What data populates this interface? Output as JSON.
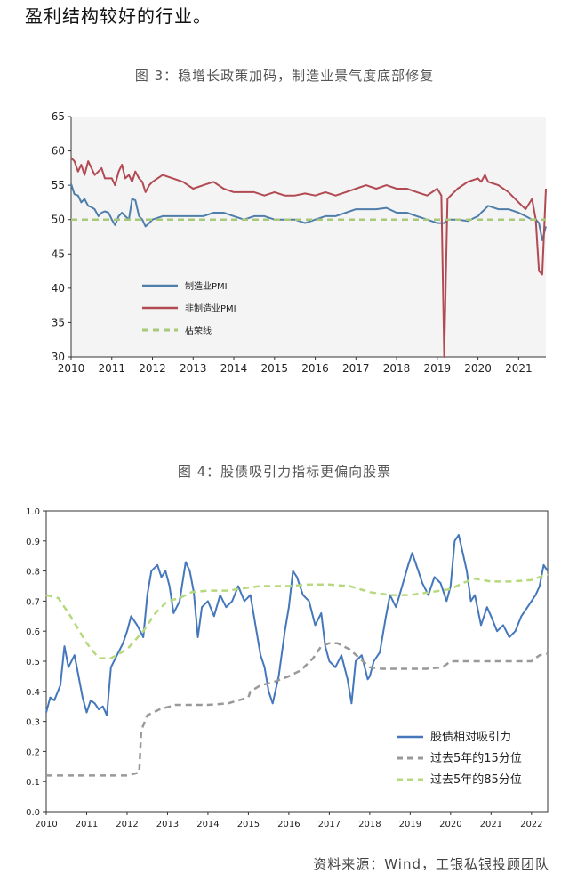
{
  "intro_text": "盈利结构较好的行业。",
  "source_text": "资料来源：Wind，工银私银投顾团队",
  "chart_data": [
    {
      "type": "line",
      "title": "图 3：稳增长政策加码，制造业景气度底部修复",
      "x_ticks": [
        "2010",
        "2011",
        "2012",
        "2013",
        "2014",
        "2015",
        "2016",
        "2017",
        "2018",
        "2019",
        "2020",
        "2021"
      ],
      "xlim": [
        2010,
        2021.67
      ],
      "ylim": [
        30,
        65
      ],
      "y_ticks": [
        30,
        35,
        40,
        45,
        50,
        55,
        60,
        65
      ],
      "grid": false,
      "legend_position": "lower-left",
      "series": [
        {
          "name": "制造业PMI",
          "color": "#4f7eab",
          "x": [
            2010.0,
            2010.08,
            2010.17,
            2010.25,
            2010.33,
            2010.42,
            2010.5,
            2010.58,
            2010.67,
            2010.75,
            2010.83,
            2010.92,
            2011.0,
            2011.08,
            2011.17,
            2011.25,
            2011.33,
            2011.42,
            2011.5,
            2011.58,
            2011.67,
            2011.75,
            2011.83,
            2011.92,
            2012.0,
            2012.25,
            2012.5,
            2012.75,
            2013.0,
            2013.25,
            2013.5,
            2013.75,
            2014.0,
            2014.25,
            2014.5,
            2014.75,
            2015.0,
            2015.25,
            2015.5,
            2015.75,
            2016.0,
            2016.25,
            2016.5,
            2016.75,
            2017.0,
            2017.25,
            2017.5,
            2017.75,
            2018.0,
            2018.25,
            2018.5,
            2018.75,
            2019.0,
            2019.17,
            2019.25,
            2019.5,
            2019.75,
            2020.0,
            2020.08,
            2020.17,
            2020.25,
            2020.5,
            2020.75,
            2021.0,
            2021.17,
            2021.33,
            2021.42,
            2021.5,
            2021.58,
            2021.67
          ],
          "y": [
            55.2,
            53.7,
            53.5,
            52.5,
            53.0,
            52.0,
            51.8,
            51.5,
            50.5,
            51.0,
            51.2,
            51.0,
            50.0,
            49.2,
            50.5,
            51.0,
            50.5,
            50.0,
            53.0,
            52.8,
            50.5,
            50.0,
            49.0,
            49.5,
            50.0,
            50.5,
            50.5,
            50.5,
            50.5,
            50.5,
            51.0,
            51.0,
            50.5,
            50.0,
            50.5,
            50.5,
            50.0,
            50.0,
            50.0,
            49.5,
            50.0,
            50.5,
            50.5,
            51.0,
            51.5,
            51.5,
            51.5,
            51.7,
            51.0,
            51.0,
            50.5,
            50.0,
            49.5,
            49.5,
            50.0,
            50.0,
            49.8,
            50.5,
            51.0,
            51.5,
            52.0,
            51.5,
            51.5,
            51.0,
            50.5,
            50.0,
            50.0,
            49.5,
            47.0,
            49.0
          ]
        },
        {
          "name": "非制造业PMI",
          "color": "#b24a53",
          "x": [
            2010.0,
            2010.08,
            2010.17,
            2010.25,
            2010.33,
            2010.42,
            2010.5,
            2010.58,
            2010.67,
            2010.75,
            2010.83,
            2010.92,
            2011.0,
            2011.08,
            2011.17,
            2011.25,
            2011.33,
            2011.42,
            2011.5,
            2011.58,
            2011.67,
            2011.75,
            2011.83,
            2011.92,
            2012.0,
            2012.25,
            2012.5,
            2012.75,
            2013.0,
            2013.25,
            2013.5,
            2013.75,
            2014.0,
            2014.25,
            2014.5,
            2014.75,
            2015.0,
            2015.25,
            2015.5,
            2015.75,
            2016.0,
            2016.25,
            2016.5,
            2016.75,
            2017.0,
            2017.25,
            2017.5,
            2017.75,
            2018.0,
            2018.25,
            2018.5,
            2018.75,
            2019.0,
            2019.1,
            2019.17,
            2019.25,
            2019.33,
            2019.5,
            2019.75,
            2020.0,
            2020.08,
            2020.17,
            2020.25,
            2020.5,
            2020.75,
            2021.0,
            2021.17,
            2021.33,
            2021.42,
            2021.5,
            2021.58,
            2021.67
          ],
          "y": [
            59.0,
            58.5,
            57.0,
            58.0,
            56.5,
            58.5,
            57.5,
            56.5,
            57.0,
            57.5,
            56.0,
            56.0,
            56.0,
            55.0,
            57.0,
            58.0,
            56.0,
            56.5,
            55.5,
            57.0,
            56.0,
            55.5,
            54.0,
            55.0,
            55.5,
            56.5,
            56.0,
            55.5,
            54.5,
            55.0,
            55.5,
            54.5,
            54.0,
            54.0,
            54.0,
            53.5,
            54.0,
            53.5,
            53.5,
            53.8,
            53.5,
            54.0,
            53.5,
            54.0,
            54.5,
            55.0,
            54.5,
            55.0,
            54.5,
            54.5,
            54.0,
            53.5,
            54.5,
            53.5,
            30.0,
            53.0,
            53.5,
            54.5,
            55.5,
            56.0,
            55.5,
            56.5,
            55.5,
            55.0,
            54.0,
            52.5,
            51.5,
            53.0,
            50.0,
            42.5,
            42.0,
            54.5
          ]
        },
        {
          "name": "枯荣线",
          "color": "#a9c97a",
          "dashed": true,
          "x": [
            2010.0,
            2021.67
          ],
          "y": [
            50,
            50
          ]
        }
      ]
    },
    {
      "type": "line",
      "title": "图 4：股债吸引力指标更偏向股票",
      "x_ticks": [
        "2010",
        "2011",
        "2012",
        "2013",
        "2014",
        "2015",
        "2016",
        "2017",
        "2018",
        "2019",
        "2020",
        "2021",
        "2022"
      ],
      "xlim": [
        2010,
        2022.4
      ],
      "ylim": [
        0.0,
        1.0
      ],
      "y_ticks": [
        "0.0",
        "0.1",
        "0.2",
        "0.3",
        "0.4",
        "0.5",
        "0.6",
        "0.7",
        "0.8",
        "0.9",
        "1.0"
      ],
      "grid": false,
      "legend_position": "lower-right",
      "series": [
        {
          "name": "股债相对吸引力",
          "color": "#4477bb",
          "x": [
            2010.0,
            2010.1,
            2010.2,
            2010.35,
            2010.45,
            2010.55,
            2010.7,
            2010.8,
            2010.9,
            2011.0,
            2011.1,
            2011.2,
            2011.3,
            2011.4,
            2011.5,
            2011.6,
            2011.75,
            2011.9,
            2012.0,
            2012.1,
            2012.25,
            2012.4,
            2012.5,
            2012.6,
            2012.75,
            2012.85,
            2012.95,
            2013.05,
            2013.15,
            2013.3,
            2013.45,
            2013.55,
            2013.65,
            2013.75,
            2013.85,
            2014.0,
            2014.15,
            2014.3,
            2014.45,
            2014.6,
            2014.75,
            2014.9,
            2015.05,
            2015.2,
            2015.3,
            2015.4,
            2015.5,
            2015.6,
            2015.75,
            2015.9,
            2016.0,
            2016.1,
            2016.2,
            2016.35,
            2016.5,
            2016.65,
            2016.8,
            2016.9,
            2017.0,
            2017.15,
            2017.3,
            2017.45,
            2017.55,
            2017.65,
            2017.8,
            2017.95,
            2018.0,
            2018.1,
            2018.25,
            2018.4,
            2018.5,
            2018.65,
            2018.8,
            2018.95,
            2019.05,
            2019.2,
            2019.3,
            2019.45,
            2019.6,
            2019.75,
            2019.9,
            2020.0,
            2020.1,
            2020.2,
            2020.3,
            2020.4,
            2020.5,
            2020.6,
            2020.75,
            2020.9,
            2021.0,
            2021.15,
            2021.3,
            2021.45,
            2021.6,
            2021.75,
            2021.9,
            2022.0,
            2022.1,
            2022.2,
            2022.3,
            2022.4
          ],
          "y": [
            0.33,
            0.38,
            0.37,
            0.42,
            0.55,
            0.48,
            0.52,
            0.45,
            0.38,
            0.33,
            0.37,
            0.36,
            0.34,
            0.35,
            0.32,
            0.48,
            0.52,
            0.56,
            0.6,
            0.65,
            0.62,
            0.58,
            0.72,
            0.8,
            0.82,
            0.78,
            0.8,
            0.75,
            0.66,
            0.7,
            0.83,
            0.8,
            0.73,
            0.58,
            0.68,
            0.7,
            0.65,
            0.72,
            0.68,
            0.7,
            0.75,
            0.7,
            0.72,
            0.6,
            0.52,
            0.48,
            0.4,
            0.36,
            0.45,
            0.6,
            0.68,
            0.8,
            0.78,
            0.72,
            0.7,
            0.62,
            0.66,
            0.55,
            0.5,
            0.48,
            0.52,
            0.44,
            0.36,
            0.5,
            0.52,
            0.44,
            0.45,
            0.5,
            0.53,
            0.65,
            0.72,
            0.68,
            0.75,
            0.82,
            0.86,
            0.8,
            0.76,
            0.72,
            0.78,
            0.76,
            0.7,
            0.75,
            0.9,
            0.92,
            0.86,
            0.8,
            0.7,
            0.72,
            0.62,
            0.68,
            0.65,
            0.6,
            0.62,
            0.58,
            0.6,
            0.65,
            0.68,
            0.7,
            0.72,
            0.75,
            0.82,
            0.8
          ]
        },
        {
          "name": "过去5年的15分位",
          "color": "#999999",
          "dashed": true,
          "x": [
            2010.0,
            2011.0,
            2012.0,
            2012.3,
            2012.35,
            2012.5,
            2012.8,
            2013.2,
            2014.0,
            2014.5,
            2015.0,
            2015.05,
            2015.3,
            2015.6,
            2016.0,
            2016.3,
            2016.6,
            2016.8,
            2017.0,
            2017.2,
            2017.5,
            2018.0,
            2018.3,
            2019.0,
            2019.4,
            2019.8,
            2020.0,
            2020.5,
            2021.0,
            2021.5,
            2022.0,
            2022.2,
            2022.4
          ],
          "y": [
            0.12,
            0.12,
            0.12,
            0.13,
            0.27,
            0.32,
            0.34,
            0.355,
            0.355,
            0.36,
            0.38,
            0.4,
            0.42,
            0.43,
            0.45,
            0.47,
            0.51,
            0.55,
            0.56,
            0.56,
            0.54,
            0.48,
            0.475,
            0.475,
            0.475,
            0.48,
            0.5,
            0.5,
            0.5,
            0.5,
            0.5,
            0.52,
            0.525
          ]
        },
        {
          "name": "过去5年的85分位",
          "color": "#b6d97e",
          "dashed": true,
          "x": [
            2010.0,
            2010.3,
            2010.6,
            2011.0,
            2011.3,
            2011.6,
            2012.0,
            2012.4,
            2012.7,
            2013.0,
            2013.3,
            2013.6,
            2014.0,
            2014.5,
            2015.0,
            2015.3,
            2016.0,
            2016.5,
            2017.0,
            2017.5,
            2018.0,
            2018.5,
            2019.0,
            2019.5,
            2020.0,
            2020.3,
            2020.6,
            2021.0,
            2021.5,
            2022.0,
            2022.4
          ],
          "y": [
            0.72,
            0.71,
            0.65,
            0.56,
            0.51,
            0.51,
            0.54,
            0.6,
            0.66,
            0.7,
            0.71,
            0.73,
            0.735,
            0.735,
            0.745,
            0.75,
            0.75,
            0.755,
            0.755,
            0.75,
            0.73,
            0.72,
            0.72,
            0.73,
            0.74,
            0.76,
            0.775,
            0.765,
            0.765,
            0.77,
            0.79
          ]
        }
      ]
    }
  ]
}
